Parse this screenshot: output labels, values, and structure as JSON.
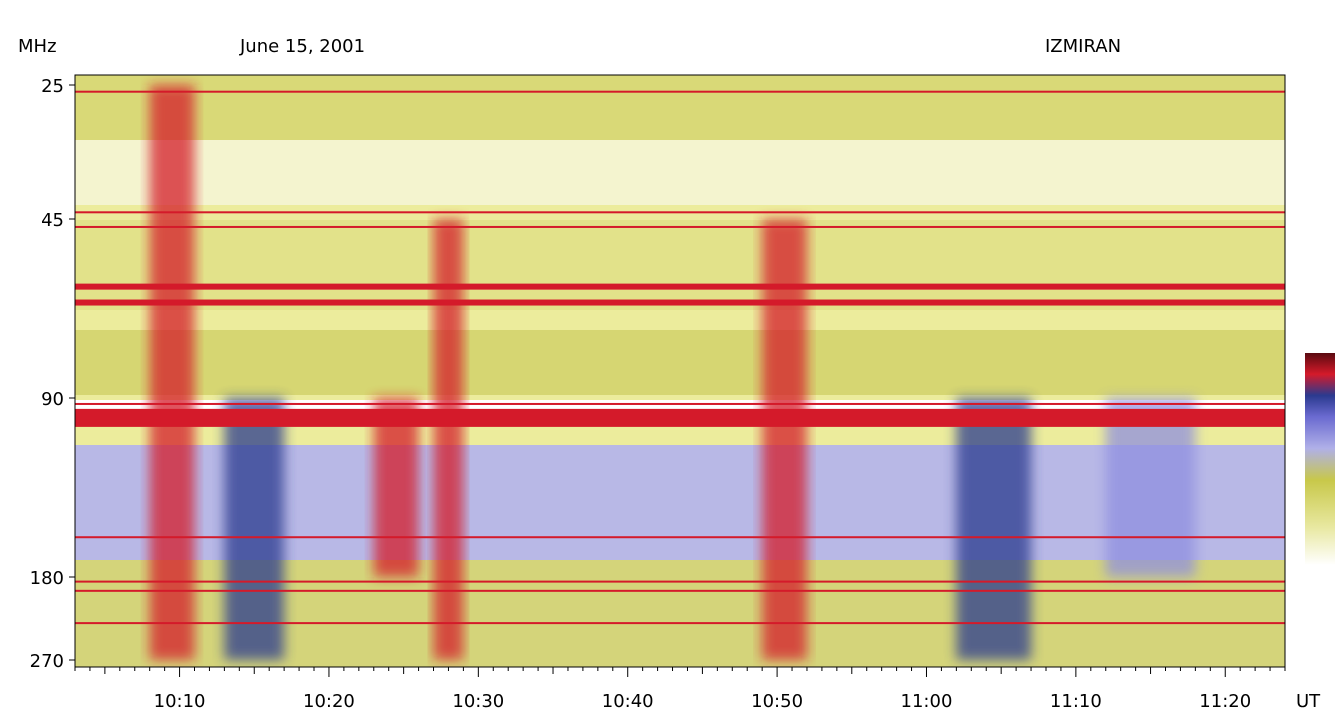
{
  "header": {
    "unit_label": "MHz",
    "date": "June 15, 2001",
    "observatory": "IZMIRAN"
  },
  "colors": {
    "background": "#ffffff",
    "quiet": "#f3f3c8",
    "moderate": "#c8c84a",
    "enhanced": "#8f8fe0",
    "strong": "#2b3a8f",
    "intense": "#d41a2a",
    "saturated": "#5a0a10"
  },
  "chart_data": {
    "type": "heatmap",
    "title": "June 15, 2001",
    "subtitle": "IZMIRAN",
    "ylabel": "MHz",
    "xlabel": "UT",
    "y_ticks": [
      "25",
      "45",
      "90",
      "180",
      "270"
    ],
    "x_ticks": [
      "10:10",
      "10:20",
      "10:30",
      "10:40",
      "10:50",
      "11:00",
      "11:10",
      "11:20"
    ],
    "x_range": [
      "10:03",
      "11:24"
    ],
    "y_range_mhz": [
      25,
      270
    ],
    "colorbar_levels": [
      "quiet",
      "moderate",
      "enhanced",
      "strong",
      "intense",
      "saturated"
    ],
    "bursts": [
      {
        "time": "10:08",
        "duration_min": 3,
        "from_mhz": 25,
        "to_mhz": 270,
        "intensity": "intense"
      },
      {
        "time": "10:13",
        "duration_min": 4,
        "from_mhz": 90,
        "to_mhz": 270,
        "intensity": "strong"
      },
      {
        "time": "10:23",
        "duration_min": 3,
        "from_mhz": 90,
        "to_mhz": 180,
        "intensity": "intense"
      },
      {
        "time": "10:27",
        "duration_min": 2,
        "from_mhz": 45,
        "to_mhz": 270,
        "intensity": "intense"
      },
      {
        "time": "10:49",
        "duration_min": 3,
        "from_mhz": 45,
        "to_mhz": 270,
        "intensity": "intense"
      },
      {
        "time": "11:02",
        "duration_min": 5,
        "from_mhz": 90,
        "to_mhz": 270,
        "intensity": "strong"
      },
      {
        "time": "11:12",
        "duration_min": 6,
        "from_mhz": 90,
        "to_mhz": 180,
        "intensity": "enhanced"
      }
    ],
    "interference_bands_mhz": [
      26,
      44,
      47,
      62,
      66,
      93,
      100,
      160,
      185,
      195,
      230
    ]
  }
}
